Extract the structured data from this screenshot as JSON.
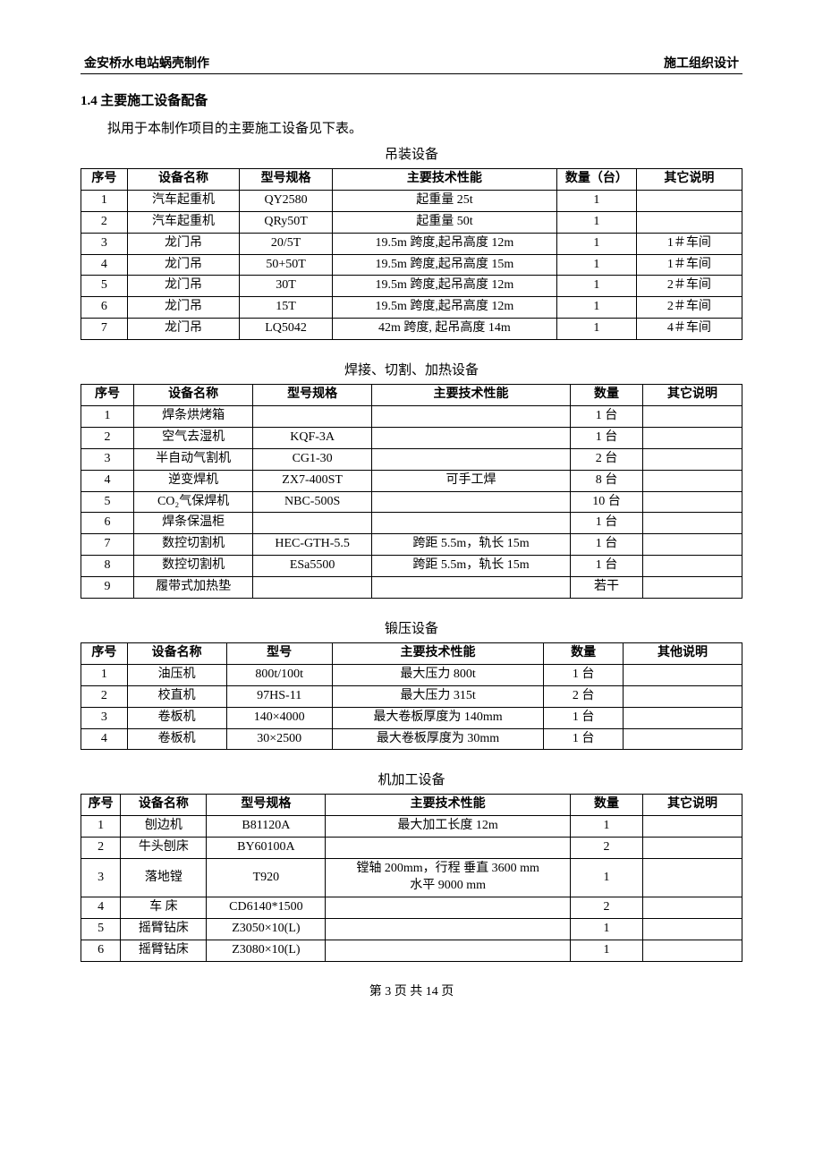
{
  "header": {
    "left": "金安桥水电站蜗壳制作",
    "right": "施工组织设计"
  },
  "section": {
    "number": "1.4",
    "title": "主要施工设备配备",
    "intro": "拟用于本制作项目的主要施工设备见下表。"
  },
  "tables": {
    "hoist": {
      "title": "吊装设备",
      "widths": [
        "7%",
        "17%",
        "14%",
        "34%",
        "12%",
        "16%"
      ],
      "headers": [
        "序号",
        "设备名称",
        "型号规格",
        "主要技术性能",
        "数量（台）",
        "其它说明"
      ],
      "rows": [
        [
          "1",
          "汽车起重机",
          "QY2580",
          "起重量 25t",
          "1",
          ""
        ],
        [
          "2",
          "汽车起重机",
          "QRy50T",
          "起重量 50t",
          "1",
          ""
        ],
        [
          "3",
          "龙门吊",
          "20/5T",
          "19.5m 跨度,起吊高度 12m",
          "1",
          "1＃车间"
        ],
        [
          "4",
          "龙门吊",
          "50+50T",
          "19.5m 跨度,起吊高度 15m",
          "1",
          "1＃车间"
        ],
        [
          "5",
          "龙门吊",
          "30T",
          "19.5m 跨度,起吊高度 12m",
          "1",
          "2＃车间"
        ],
        [
          "6",
          "龙门吊",
          "15T",
          "19.5m 跨度,起吊高度 12m",
          "1",
          "2＃车间"
        ],
        [
          "7",
          "龙门吊",
          "LQ5042",
          "42m 跨度,  起吊高度 14m",
          "1",
          "4＃车间"
        ]
      ]
    },
    "weld": {
      "title": "焊接、切割、加热设备",
      "widths": [
        "8%",
        "18%",
        "18%",
        "30%",
        "11%",
        "15%"
      ],
      "headers": [
        "序号",
        "设备名称",
        "型号规格",
        "主要技术性能",
        "数量",
        "其它说明"
      ],
      "rows": [
        [
          "1",
          "焊条烘烤箱",
          "",
          "",
          "1 台",
          ""
        ],
        [
          "2",
          "空气去湿机",
          "KQF-3A",
          "",
          "1 台",
          ""
        ],
        [
          "3",
          "半自动气割机",
          "CG1-30",
          "",
          "2 台",
          ""
        ],
        [
          "4",
          "逆变焊机",
          "ZX7-400ST",
          "可手工焊",
          "8 台",
          ""
        ],
        [
          "5",
          "CO₂气保焊机",
          "NBC-500S",
          "",
          "10 台",
          ""
        ],
        [
          "6",
          "焊条保温柜",
          "",
          "",
          "1 台",
          ""
        ],
        [
          "7",
          "数控切割机",
          "HEC-GTH-5.5",
          "跨距 5.5m，轨长 15m",
          "1 台",
          ""
        ],
        [
          "8",
          "数控切割机",
          "ESa5500",
          "跨距 5.5m，轨长 15m",
          "1 台",
          ""
        ],
        [
          "9",
          "履带式加热垫",
          "",
          "",
          "若干",
          ""
        ]
      ]
    },
    "forge": {
      "title": "锻压设备",
      "widths": [
        "7%",
        "15%",
        "16%",
        "32%",
        "12%",
        "18%"
      ],
      "headers": [
        "序号",
        "设备名称",
        "型号",
        "主要技术性能",
        "数量",
        "其他说明"
      ],
      "rows": [
        [
          "1",
          "油压机",
          "800t/100t",
          "最大压力 800t",
          "1 台",
          ""
        ],
        [
          "2",
          "校直机",
          "97HS-11",
          "最大压力 315t",
          "2 台",
          ""
        ],
        [
          "3",
          "卷板机",
          "140×4000",
          "最大卷板厚度为 140mm",
          "1 台",
          ""
        ],
        [
          "4",
          "卷板机",
          "30×2500",
          "最大卷板厚度为 30mm",
          "1 台",
          ""
        ]
      ]
    },
    "machine": {
      "title": "机加工设备",
      "widths": [
        "6%",
        "13%",
        "18%",
        "37%",
        "11%",
        "15%"
      ],
      "headers": [
        "序号",
        "设备名称",
        "型号规格",
        "主要技术性能",
        "数量",
        "其它说明"
      ],
      "rows": [
        [
          "1",
          "刨边机",
          "B81120A",
          "最大加工长度 12m",
          "1",
          ""
        ],
        [
          "2",
          "牛头刨床",
          "BY60100A",
          "",
          "2",
          ""
        ],
        [
          "3",
          "落地镗",
          "T920",
          "镗轴 200mm，行程 垂直 3600 mm\n水平 9000 mm",
          "1",
          ""
        ],
        [
          "4",
          "车 床",
          "CD6140*1500",
          "",
          "2",
          ""
        ],
        [
          "5",
          "摇臂钻床",
          "Z3050×10(L)",
          "",
          "1",
          ""
        ],
        [
          "6",
          "摇臂钻床",
          "Z3080×10(L)",
          "",
          "1",
          ""
        ]
      ]
    }
  },
  "footer": {
    "page": "第 3 页 共 14 页"
  }
}
